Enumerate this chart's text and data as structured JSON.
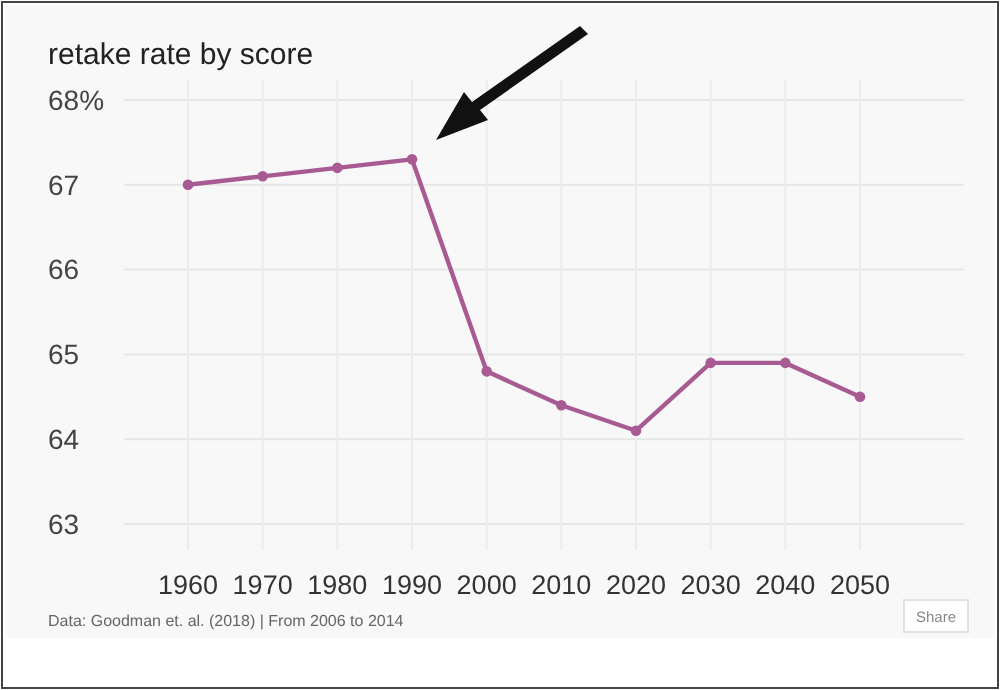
{
  "chart_data": {
    "type": "line",
    "title": "retake rate by score",
    "categories": [
      "1960",
      "1970",
      "1980",
      "1990",
      "2000",
      "2010",
      "2020",
      "2030",
      "2040",
      "2050"
    ],
    "series": [
      {
        "color": "#a85a92",
        "values": [
          67.0,
          67.1,
          67.2,
          67.3,
          64.8,
          64.4,
          64.1,
          64.9,
          64.9,
          64.5
        ]
      }
    ],
    "ylim": [
      63,
      68
    ],
    "yticks": [
      {
        "value": 68,
        "label": "68%"
      },
      67,
      66,
      65,
      64,
      63
    ],
    "grid": true,
    "marker": "circle",
    "annotations": [
      "Data: Goodman et. al. (2018) | From 2006 to 2014",
      "Share"
    ]
  }
}
